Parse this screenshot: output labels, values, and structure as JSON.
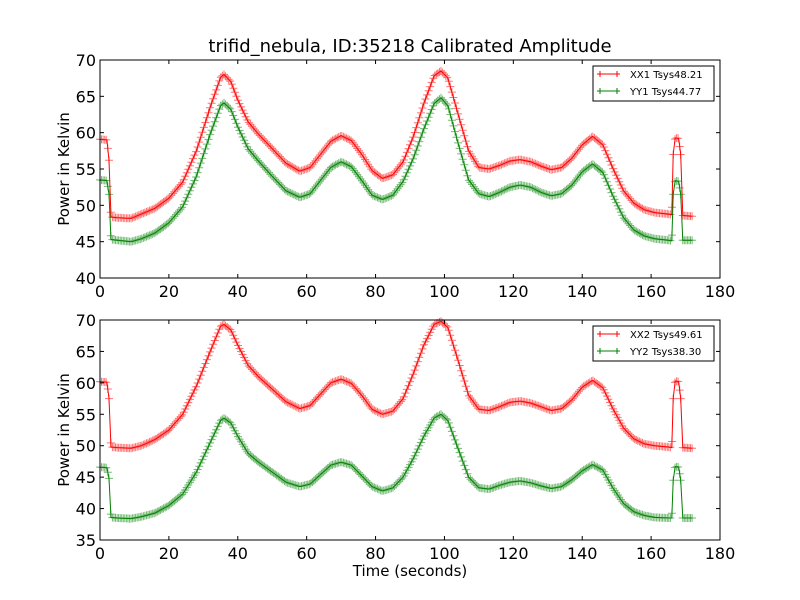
{
  "chart_data": [
    {
      "type": "line",
      "title": "trifid_nebula, ID:35218 Calibrated Amplitude",
      "xlabel": "",
      "ylabel": "Power in Kelvin",
      "xlim": [
        0,
        180
      ],
      "ylim": [
        40,
        70
      ],
      "xticks": [
        "0",
        "20",
        "40",
        "60",
        "80",
        "100",
        "120",
        "140",
        "160",
        "180"
      ],
      "yticks": [
        "40",
        "45",
        "50",
        "55",
        "60",
        "65",
        "70"
      ],
      "grid": false,
      "legend_position": "top-right",
      "marker": "+",
      "series": [
        {
          "name": "XX1 Tsys48.21",
          "color": "#ff0000",
          "points": [
            [
              0,
              59.1
            ],
            [
              2,
              59.0
            ],
            [
              2.6,
              56.2
            ],
            [
              3.2,
              48.4
            ],
            [
              5,
              48.3
            ],
            [
              9,
              48.2
            ],
            [
              12,
              48.8
            ],
            [
              16,
              49.6
            ],
            [
              20,
              51.0
            ],
            [
              24,
              53.2
            ],
            [
              28,
              57.5
            ],
            [
              32,
              63.5
            ],
            [
              35,
              67.6
            ],
            [
              36,
              68.0
            ],
            [
              38,
              67.0
            ],
            [
              40,
              64.5
            ],
            [
              43,
              61.5
            ],
            [
              46,
              59.8
            ],
            [
              50,
              57.8
            ],
            [
              54,
              55.8
            ],
            [
              58,
              54.7
            ],
            [
              61,
              55.2
            ],
            [
              64,
              57.0
            ],
            [
              67,
              58.8
            ],
            [
              70,
              59.6
            ],
            [
              73,
              58.9
            ],
            [
              76,
              57.0
            ],
            [
              79,
              54.8
            ],
            [
              82,
              53.7
            ],
            [
              85,
              54.2
            ],
            [
              88,
              56.0
            ],
            [
              91,
              59.5
            ],
            [
              94,
              64.0
            ],
            [
              97,
              67.8
            ],
            [
              99,
              68.5
            ],
            [
              101,
              67.5
            ],
            [
              104,
              62.5
            ],
            [
              107,
              57.5
            ],
            [
              110,
              55.2
            ],
            [
              113,
              55.0
            ],
            [
              116,
              55.5
            ],
            [
              119,
              56.1
            ],
            [
              122,
              56.3
            ],
            [
              125,
              56.0
            ],
            [
              128,
              55.4
            ],
            [
              131,
              54.9
            ],
            [
              134,
              55.2
            ],
            [
              137,
              56.5
            ],
            [
              140,
              58.3
            ],
            [
              143,
              59.5
            ],
            [
              146,
              58.3
            ],
            [
              149,
              55.0
            ],
            [
              152,
              52.0
            ],
            [
              155,
              50.3
            ],
            [
              158,
              49.4
            ],
            [
              161,
              49.0
            ],
            [
              165,
              48.8
            ],
            [
              166,
              48.7
            ],
            [
              166.4,
              57.0
            ],
            [
              167,
              59.3
            ],
            [
              168,
              59.2
            ],
            [
              168.6,
              57.0
            ],
            [
              169.2,
              48.6
            ],
            [
              172,
              48.5
            ]
          ]
        },
        {
          "name": "YY1 Tsys44.77",
          "color": "#008000",
          "points": [
            [
              0,
              53.5
            ],
            [
              2,
              53.4
            ],
            [
              2.6,
              51.5
            ],
            [
              3.2,
              45.3
            ],
            [
              5,
              45.2
            ],
            [
              9,
              45.0
            ],
            [
              12,
              45.4
            ],
            [
              16,
              46.2
            ],
            [
              20,
              47.6
            ],
            [
              24,
              49.8
            ],
            [
              28,
              54.0
            ],
            [
              32,
              59.8
            ],
            [
              35,
              63.7
            ],
            [
              36,
              64.1
            ],
            [
              38,
              63.2
            ],
            [
              40,
              60.8
            ],
            [
              43,
              57.8
            ],
            [
              46,
              56.1
            ],
            [
              50,
              54.0
            ],
            [
              54,
              52.0
            ],
            [
              58,
              51.1
            ],
            [
              61,
              51.6
            ],
            [
              64,
              53.4
            ],
            [
              67,
              55.2
            ],
            [
              70,
              56.0
            ],
            [
              73,
              55.3
            ],
            [
              76,
              53.4
            ],
            [
              79,
              51.4
            ],
            [
              82,
              50.8
            ],
            [
              85,
              51.4
            ],
            [
              88,
              53.3
            ],
            [
              91,
              56.5
            ],
            [
              94,
              60.5
            ],
            [
              97,
              64.0
            ],
            [
              99,
              64.8
            ],
            [
              101,
              63.7
            ],
            [
              104,
              58.5
            ],
            [
              107,
              53.5
            ],
            [
              110,
              51.6
            ],
            [
              113,
              51.2
            ],
            [
              116,
              51.8
            ],
            [
              119,
              52.5
            ],
            [
              122,
              52.8
            ],
            [
              125,
              52.5
            ],
            [
              128,
              51.8
            ],
            [
              131,
              51.3
            ],
            [
              134,
              51.6
            ],
            [
              137,
              52.8
            ],
            [
              140,
              54.6
            ],
            [
              143,
              55.7
            ],
            [
              146,
              54.5
            ],
            [
              149,
              51.2
            ],
            [
              152,
              48.3
            ],
            [
              155,
              46.6
            ],
            [
              158,
              45.8
            ],
            [
              161,
              45.4
            ],
            [
              165,
              45.2
            ],
            [
              166,
              45.1
            ],
            [
              166.4,
              51.5
            ],
            [
              167,
              53.4
            ],
            [
              168,
              53.3
            ],
            [
              168.6,
              51.5
            ],
            [
              169.2,
              45.2
            ],
            [
              172,
              45.2
            ]
          ]
        }
      ]
    },
    {
      "type": "line",
      "title": "",
      "xlabel": "Time (seconds)",
      "ylabel": "Power in Kelvin",
      "xlim": [
        0,
        180
      ],
      "ylim": [
        35,
        70
      ],
      "xticks": [
        "0",
        "20",
        "40",
        "60",
        "80",
        "100",
        "120",
        "140",
        "160",
        "180"
      ],
      "yticks": [
        "35",
        "40",
        "45",
        "50",
        "55",
        "60",
        "65",
        "70"
      ],
      "grid": false,
      "legend_position": "top-right",
      "marker": "+",
      "series": [
        {
          "name": "XX2 Tsys49.61",
          "color": "#ff0000",
          "points": [
            [
              0,
              60.2
            ],
            [
              2,
              60.1
            ],
            [
              2.6,
              57.5
            ],
            [
              3.2,
              49.8
            ],
            [
              5,
              49.7
            ],
            [
              9,
              49.6
            ],
            [
              12,
              50.0
            ],
            [
              16,
              51.0
            ],
            [
              20,
              52.5
            ],
            [
              24,
              55.0
            ],
            [
              28,
              59.5
            ],
            [
              32,
              65.0
            ],
            [
              35,
              69.0
            ],
            [
              36,
              69.3
            ],
            [
              38,
              68.4
            ],
            [
              40,
              66.0
            ],
            [
              43,
              62.8
            ],
            [
              46,
              61.0
            ],
            [
              50,
              59.0
            ],
            [
              54,
              57.0
            ],
            [
              58,
              55.9
            ],
            [
              61,
              56.4
            ],
            [
              64,
              58.2
            ],
            [
              67,
              60.0
            ],
            [
              70,
              60.6
            ],
            [
              73,
              59.9
            ],
            [
              76,
              58.0
            ],
            [
              79,
              55.8
            ],
            [
              82,
              55.0
            ],
            [
              85,
              55.5
            ],
            [
              88,
              57.5
            ],
            [
              91,
              61.5
            ],
            [
              94,
              66.0
            ],
            [
              97,
              69.3
            ],
            [
              99,
              69.8
            ],
            [
              101,
              68.8
            ],
            [
              104,
              63.5
            ],
            [
              107,
              58.0
            ],
            [
              110,
              55.8
            ],
            [
              113,
              55.6
            ],
            [
              116,
              56.2
            ],
            [
              119,
              56.9
            ],
            [
              122,
              57.1
            ],
            [
              125,
              56.8
            ],
            [
              128,
              56.2
            ],
            [
              131,
              55.6
            ],
            [
              134,
              55.9
            ],
            [
              137,
              57.3
            ],
            [
              140,
              59.3
            ],
            [
              143,
              60.4
            ],
            [
              146,
              59.2
            ],
            [
              149,
              55.8
            ],
            [
              152,
              52.8
            ],
            [
              155,
              51.1
            ],
            [
              158,
              50.3
            ],
            [
              161,
              50.0
            ],
            [
              165,
              49.8
            ],
            [
              166,
              49.7
            ],
            [
              166.4,
              57.5
            ],
            [
              167,
              60.3
            ],
            [
              168,
              60.2
            ],
            [
              168.6,
              57.5
            ],
            [
              169.2,
              49.7
            ],
            [
              172,
              49.6
            ]
          ]
        },
        {
          "name": "YY2 Tsys38.30",
          "color": "#008000",
          "points": [
            [
              0,
              46.6
            ],
            [
              2,
              46.5
            ],
            [
              2.6,
              44.8
            ],
            [
              3.2,
              38.6
            ],
            [
              5,
              38.5
            ],
            [
              9,
              38.4
            ],
            [
              12,
              38.7
            ],
            [
              16,
              39.3
            ],
            [
              20,
              40.5
            ],
            [
              24,
              42.3
            ],
            [
              28,
              45.8
            ],
            [
              32,
              50.5
            ],
            [
              35,
              54.0
            ],
            [
              36,
              54.4
            ],
            [
              38,
              53.6
            ],
            [
              40,
              51.5
            ],
            [
              43,
              48.8
            ],
            [
              46,
              47.4
            ],
            [
              50,
              45.8
            ],
            [
              54,
              44.2
            ],
            [
              58,
              43.5
            ],
            [
              61,
              43.9
            ],
            [
              64,
              45.4
            ],
            [
              67,
              46.9
            ],
            [
              70,
              47.4
            ],
            [
              73,
              46.9
            ],
            [
              76,
              45.2
            ],
            [
              79,
              43.5
            ],
            [
              82,
              42.8
            ],
            [
              85,
              43.3
            ],
            [
              88,
              45.0
            ],
            [
              91,
              48.0
            ],
            [
              94,
              51.5
            ],
            [
              97,
              54.4
            ],
            [
              99,
              55.0
            ],
            [
              101,
              54.0
            ],
            [
              104,
              49.5
            ],
            [
              107,
              45.0
            ],
            [
              110,
              43.3
            ],
            [
              113,
              43.1
            ],
            [
              116,
              43.7
            ],
            [
              119,
              44.2
            ],
            [
              122,
              44.4
            ],
            [
              125,
              44.1
            ],
            [
              128,
              43.6
            ],
            [
              131,
              43.2
            ],
            [
              134,
              43.5
            ],
            [
              137,
              44.6
            ],
            [
              140,
              46.0
            ],
            [
              143,
              47.0
            ],
            [
              146,
              46.1
            ],
            [
              149,
              43.2
            ],
            [
              152,
              40.8
            ],
            [
              155,
              39.5
            ],
            [
              158,
              38.9
            ],
            [
              161,
              38.6
            ],
            [
              165,
              38.5
            ],
            [
              166,
              38.5
            ],
            [
              166.4,
              44.5
            ],
            [
              167,
              46.7
            ],
            [
              168,
              46.6
            ],
            [
              168.6,
              44.5
            ],
            [
              169.2,
              38.5
            ],
            [
              172,
              38.5
            ]
          ]
        }
      ]
    }
  ]
}
